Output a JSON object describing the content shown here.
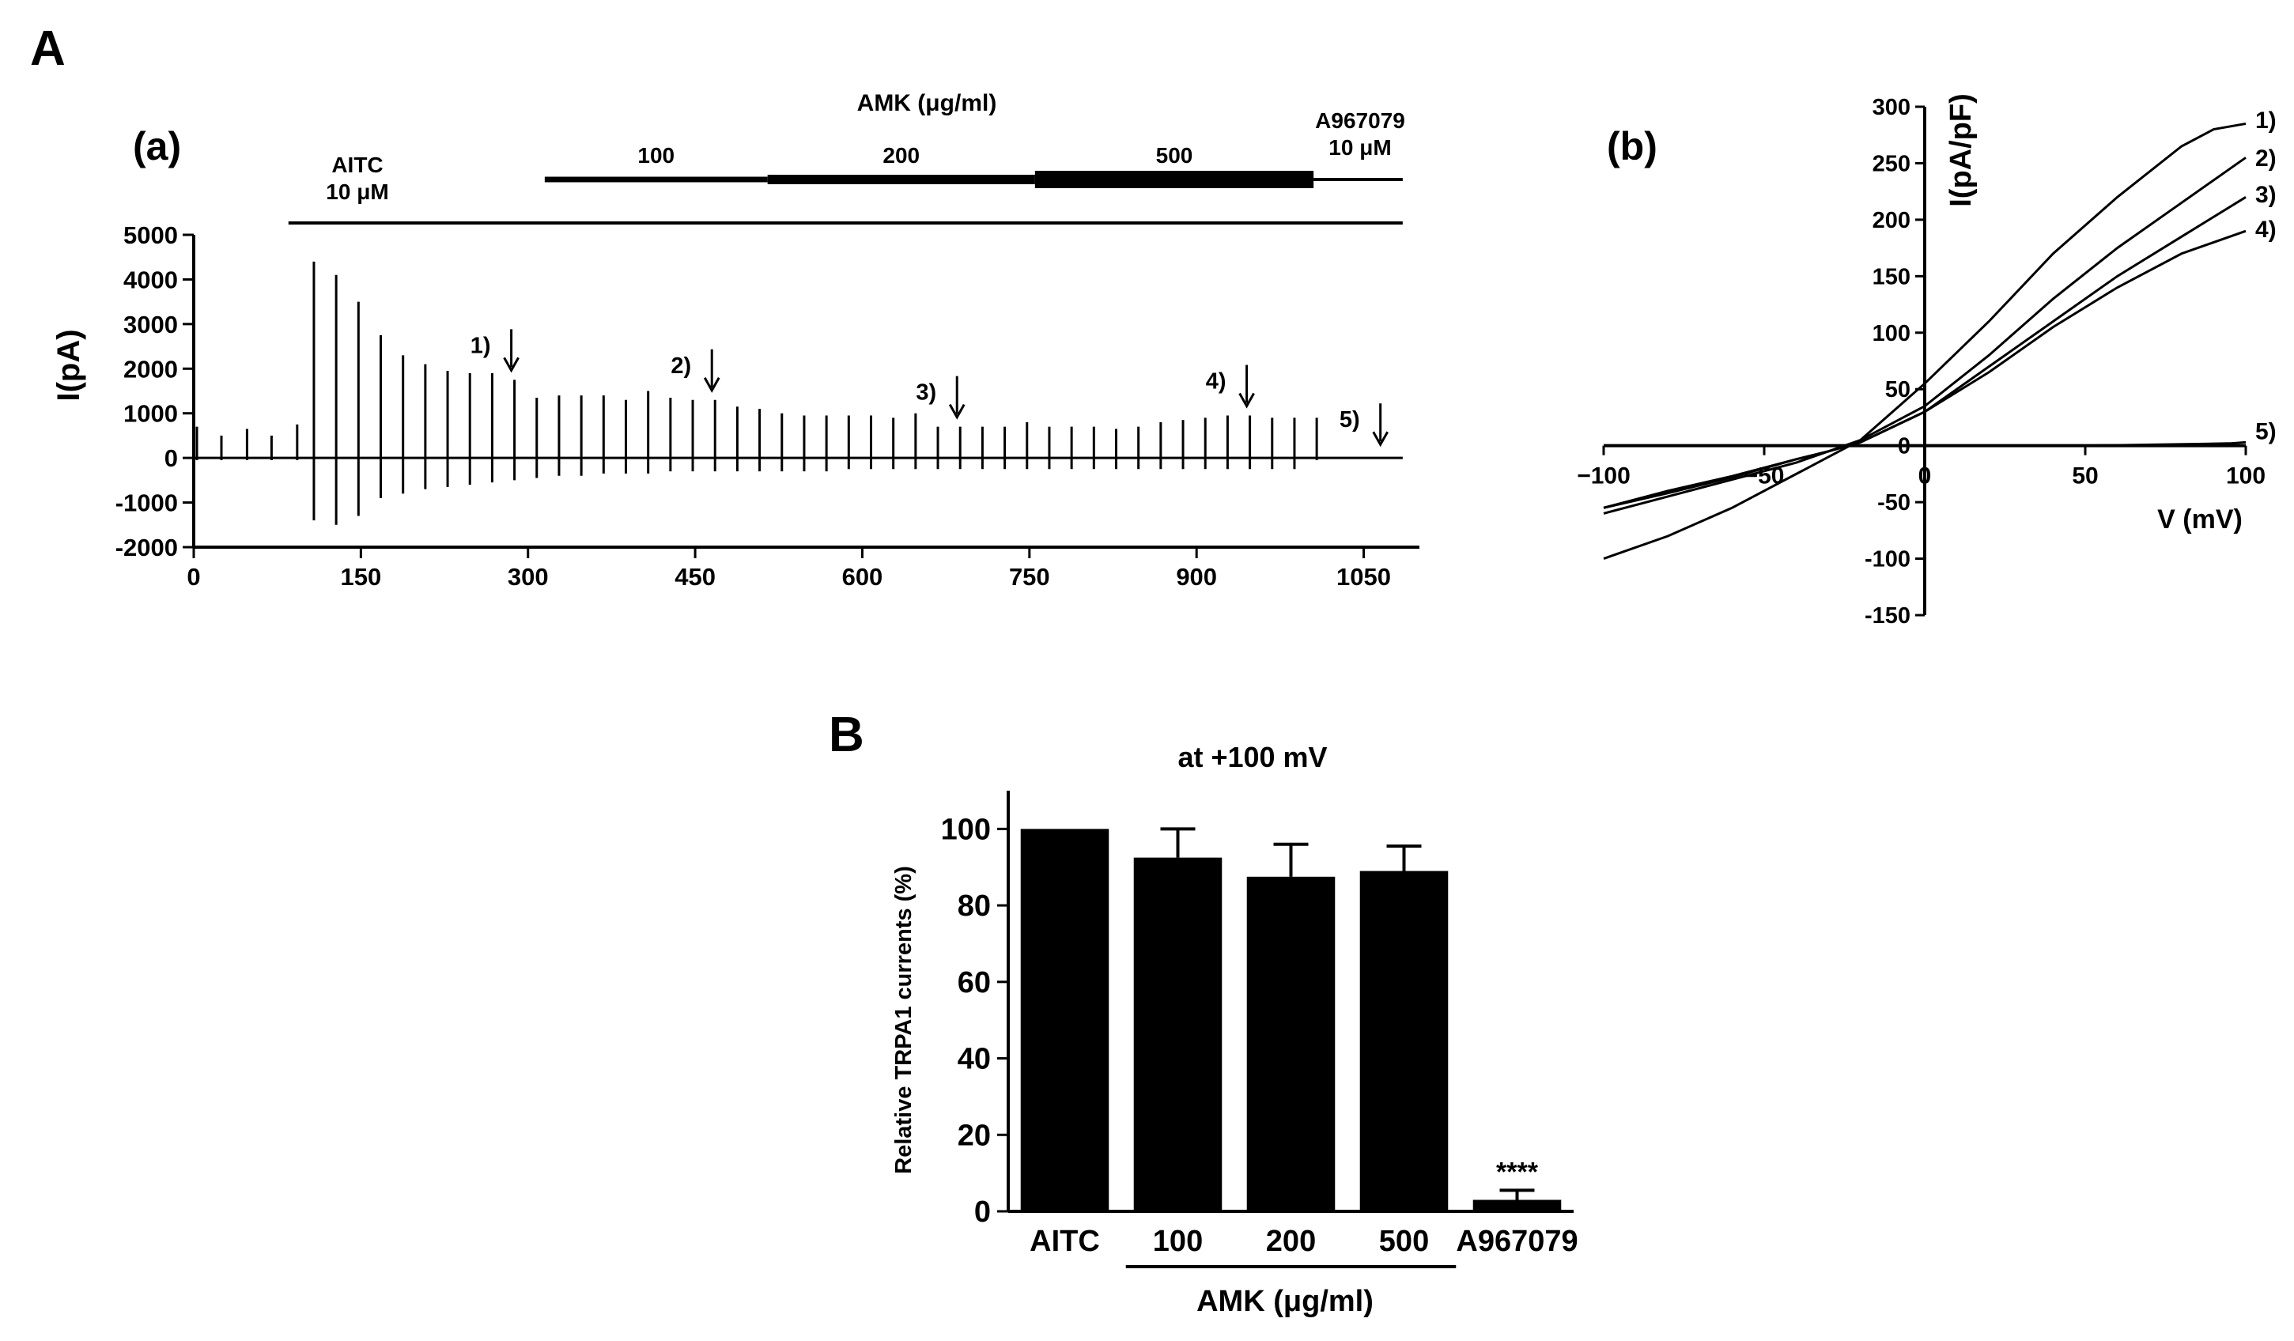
{
  "figure_labels": {
    "a_big": "A",
    "b_big": "B"
  },
  "chart_data": [
    {
      "id": "Aa",
      "type": "line",
      "panel_label": "(a)",
      "title": "",
      "xlabel": "",
      "ylabel": "I(pA)",
      "xlim": [
        0,
        1100
      ],
      "ylim": [
        -2000,
        5000
      ],
      "x_ticks": [
        "0",
        "150",
        "300",
        "450",
        "600",
        "750",
        "900",
        "1050"
      ],
      "y_ticks": [
        "5000",
        "4000",
        "3000",
        "2000",
        "1000",
        "0",
        "-1000",
        "-2000"
      ],
      "treatments": {
        "aitc_label_line1": "AITC",
        "aitc_label_line2": "10 μM",
        "aitc_range": [
          85,
          1085
        ],
        "amk_label": "AMK (μg/ml)",
        "amk_segments": [
          {
            "label": "100",
            "range": [
              315,
              515
            ]
          },
          {
            "label": "200",
            "range": [
              515,
              755
            ]
          },
          {
            "label": "500",
            "range": [
              755,
              1005
            ]
          }
        ],
        "antagonist_line1": "A967079",
        "antagonist_line2": "10 μM",
        "antagonist_range": [
          1005,
          1085
        ]
      },
      "ramp_times": [
        0,
        22,
        45,
        67,
        90,
        105,
        125,
        145,
        165,
        185,
        205,
        225,
        245,
        265,
        285,
        305,
        325,
        345,
        365,
        385,
        405,
        425,
        445,
        465,
        485,
        505,
        525,
        545,
        565,
        585,
        605,
        625,
        645,
        665,
        685,
        705,
        725,
        745,
        765,
        785,
        805,
        825,
        845,
        865,
        885,
        905,
        925,
        945,
        965,
        985,
        1005
      ],
      "ramp_peaks": [
        700,
        500,
        650,
        500,
        750,
        4400,
        4100,
        3500,
        2750,
        2300,
        2100,
        1950,
        1900,
        1900,
        1750,
        1350,
        1400,
        1400,
        1400,
        1300,
        1500,
        1350,
        1300,
        1300,
        1150,
        1100,
        1000,
        950,
        950,
        950,
        950,
        900,
        1000,
        700,
        700,
        700,
        700,
        800,
        700,
        700,
        700,
        650,
        700,
        800,
        850,
        900,
        950,
        950,
        900,
        900,
        900
      ],
      "ramp_troughs": [
        -50,
        -50,
        -50,
        -50,
        -50,
        -1400,
        -1500,
        -1300,
        -900,
        -800,
        -700,
        -650,
        -600,
        -550,
        -500,
        -450,
        -400,
        -400,
        -350,
        -350,
        -350,
        -300,
        -300,
        -300,
        -300,
        -300,
        -300,
        -300,
        -300,
        -250,
        -250,
        -250,
        -250,
        -250,
        -250,
        -250,
        -250,
        -250,
        -250,
        -250,
        -250,
        -250,
        -250,
        -250,
        -250,
        -250,
        -250,
        -250,
        -250,
        -250,
        -50
      ],
      "arrows": [
        {
          "label": "1)",
          "x": 285
        },
        {
          "label": "2)",
          "x": 465
        },
        {
          "label": "3)",
          "x": 685
        },
        {
          "label": "4)",
          "x": 945
        },
        {
          "label": "5)",
          "x": 1065
        }
      ]
    },
    {
      "id": "Ab",
      "type": "line",
      "panel_label": "(b)",
      "title": "",
      "xlabel": "V (mV)",
      "ylabel": "I(pA/pF)",
      "xlim": [
        -100,
        100
      ],
      "ylim": [
        -150,
        300
      ],
      "x_ticks": [
        "−100",
        "−50",
        "0",
        "50",
        "100"
      ],
      "y_ticks": [
        "300",
        "250",
        "200",
        "150",
        "100",
        "50",
        "0",
        "-50",
        "-100",
        "-150"
      ],
      "series": [
        {
          "name": "1)",
          "x": [
            -100,
            -80,
            -60,
            -40,
            -30,
            -20,
            0,
            20,
            40,
            60,
            80,
            90,
            100
          ],
          "y": [
            -100,
            -80,
            -55,
            -25,
            -10,
            5,
            55,
            110,
            170,
            220,
            265,
            280,
            285
          ]
        },
        {
          "name": "2)",
          "x": [
            -100,
            -80,
            -60,
            -40,
            -30,
            -20,
            0,
            20,
            40,
            60,
            80,
            100
          ],
          "y": [
            -60,
            -45,
            -30,
            -15,
            -5,
            5,
            35,
            80,
            130,
            175,
            215,
            255
          ]
        },
        {
          "name": "3)",
          "x": [
            -100,
            -80,
            -60,
            -40,
            -30,
            -20,
            0,
            20,
            40,
            60,
            80,
            100
          ],
          "y": [
            -55,
            -42,
            -28,
            -12,
            -5,
            3,
            30,
            70,
            110,
            150,
            185,
            220
          ]
        },
        {
          "name": "4)",
          "x": [
            -100,
            -80,
            -60,
            -40,
            -30,
            -20,
            0,
            20,
            40,
            60,
            80,
            100
          ],
          "y": [
            -55,
            -40,
            -27,
            -12,
            -5,
            3,
            30,
            65,
            105,
            140,
            170,
            190
          ]
        },
        {
          "name": "5)",
          "x": [
            -100,
            -50,
            0,
            50,
            95,
            100
          ],
          "y": [
            0,
            0,
            0,
            0,
            2,
            3
          ]
        }
      ]
    },
    {
      "id": "B",
      "type": "bar",
      "title": "at +100 mV",
      "xlabel": "",
      "ylabel": "Relative TRPA1 currents (%)",
      "ylim": [
        0,
        110
      ],
      "y_ticks": [
        "100",
        "80",
        "60",
        "40",
        "20",
        "0"
      ],
      "categories": [
        "AITC",
        "100",
        "200",
        "500",
        "A967079"
      ],
      "values": [
        100,
        92.5,
        87.5,
        89,
        3
      ],
      "errors": [
        0,
        7.5,
        8.5,
        6.5,
        2.5
      ],
      "group_label": "AMK (μg/ml)",
      "significance": {
        "category": "A967079",
        "text": "****"
      }
    }
  ]
}
